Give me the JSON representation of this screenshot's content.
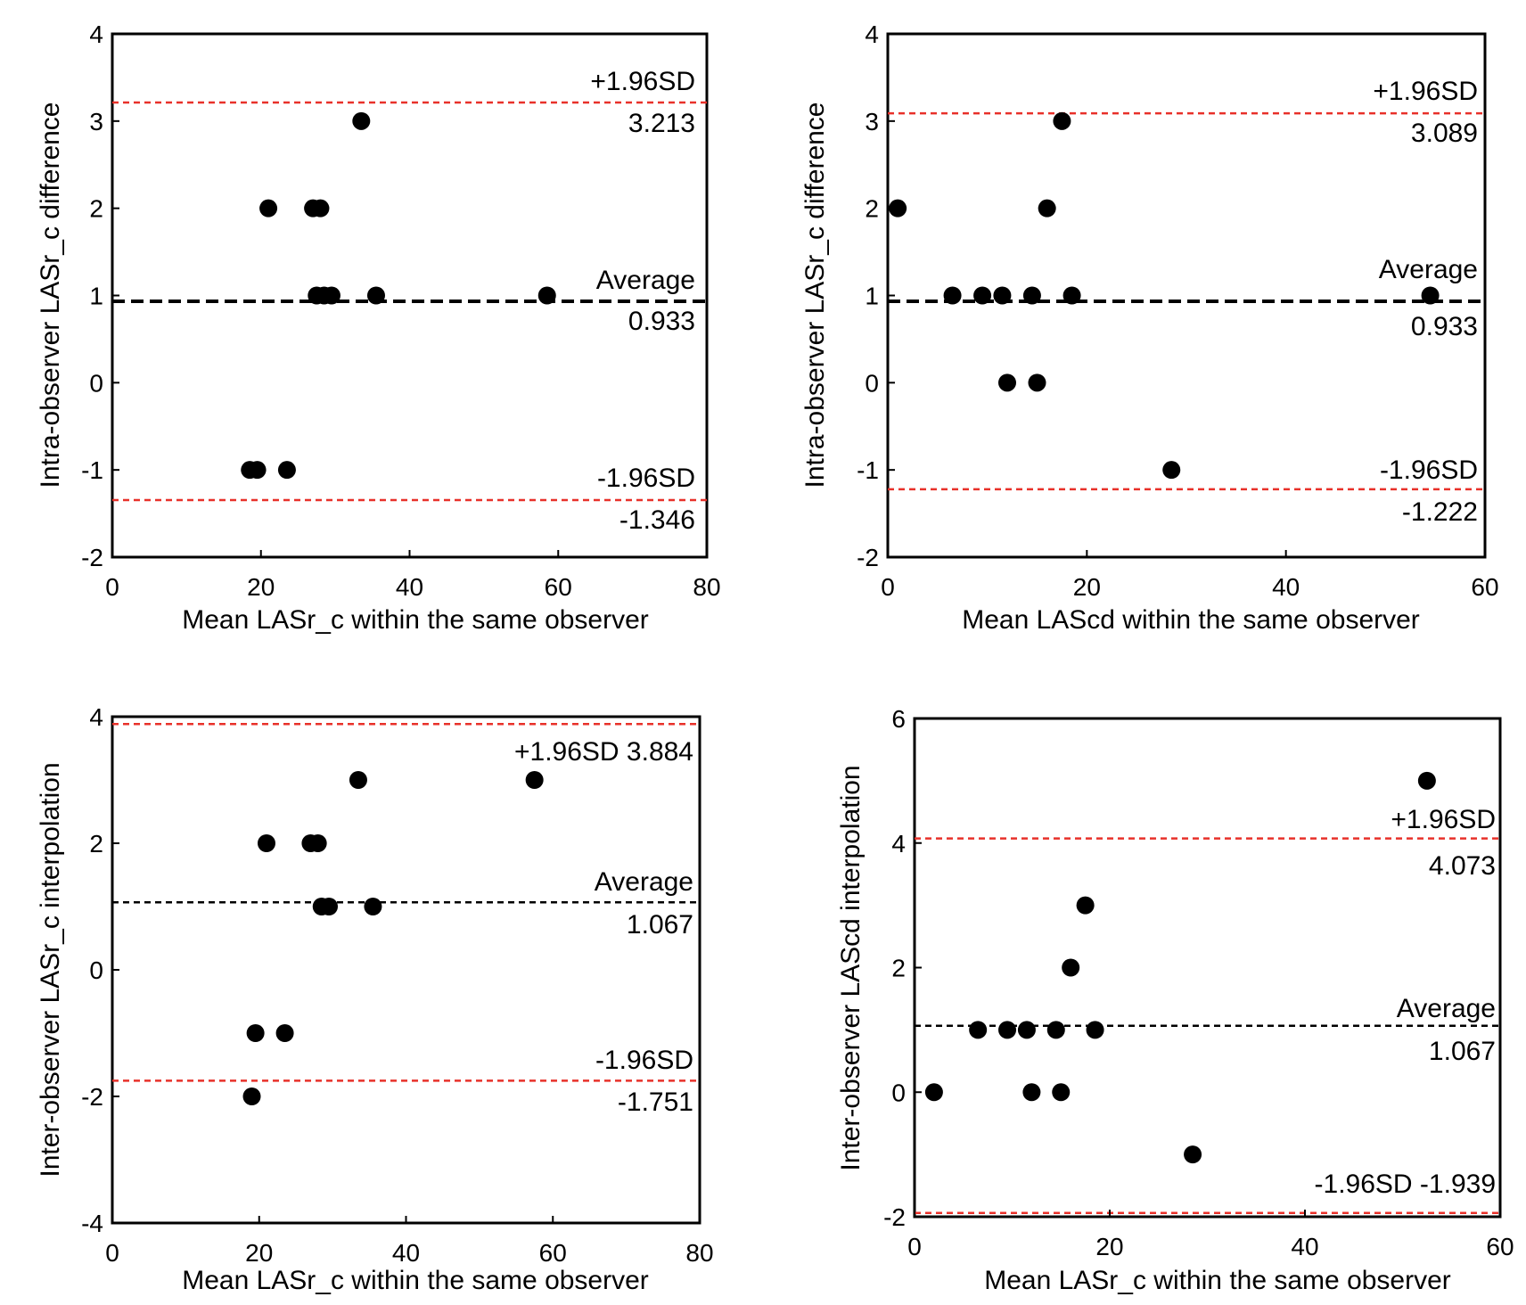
{
  "chart_data": [
    {
      "type": "scatter",
      "xlabel": "Mean LASr_c within the same observer",
      "ylabel": "Intra-observer LASr_c difference",
      "xlim": [
        0,
        80
      ],
      "ylim": [
        -2,
        4
      ],
      "xticks": [
        "0",
        "20",
        "40",
        "60",
        "80"
      ],
      "yticks": [
        "-2",
        "-1",
        "0",
        "1",
        "2",
        "3",
        "4"
      ],
      "grid": false,
      "points": [
        {
          "x": 18.5,
          "y": -1
        },
        {
          "x": 19.5,
          "y": -1
        },
        {
          "x": 23.5,
          "y": -1
        },
        {
          "x": 21,
          "y": 2
        },
        {
          "x": 27,
          "y": 2
        },
        {
          "x": 28,
          "y": 2
        },
        {
          "x": 27.5,
          "y": 1
        },
        {
          "x": 28.5,
          "y": 1
        },
        {
          "x": 29.5,
          "y": 1
        },
        {
          "x": 35.5,
          "y": 1
        },
        {
          "x": 58.5,
          "y": 1
        },
        {
          "x": 33.5,
          "y": 3
        }
      ],
      "reference_lines": [
        {
          "name": "+1.96SD",
          "value": 3.213,
          "value_label": "3.213",
          "color": "#e8312a",
          "style": "dotted"
        },
        {
          "name": "Average",
          "value": 0.933,
          "value_label": "0.933",
          "color": "#000000",
          "style": "dashed-bold"
        },
        {
          "name": "-1.96SD",
          "value": -1.346,
          "value_label": "-1.346",
          "color": "#e8312a",
          "style": "dotted"
        }
      ]
    },
    {
      "type": "scatter",
      "xlabel": "Mean LAScd within the same observer",
      "ylabel": "Intra-observer LASr_c difference",
      "xlim": [
        0,
        60
      ],
      "ylim": [
        -2,
        4
      ],
      "xticks": [
        "0",
        "20",
        "40",
        "60"
      ],
      "yticks": [
        "-2",
        "-1",
        "0",
        "1",
        "2",
        "3",
        "4"
      ],
      "grid": false,
      "points": [
        {
          "x": 1,
          "y": 2
        },
        {
          "x": 6.5,
          "y": 1
        },
        {
          "x": 9.5,
          "y": 1
        },
        {
          "x": 11.5,
          "y": 1
        },
        {
          "x": 14.5,
          "y": 1
        },
        {
          "x": 18.5,
          "y": 1
        },
        {
          "x": 12,
          "y": 0
        },
        {
          "x": 15,
          "y": 0
        },
        {
          "x": 16,
          "y": 2
        },
        {
          "x": 17.5,
          "y": 3
        },
        {
          "x": 28.5,
          "y": -1
        },
        {
          "x": 54.5,
          "y": 1
        }
      ],
      "reference_lines": [
        {
          "name": "+1.96SD",
          "value": 3.089,
          "value_label": "3.089",
          "color": "#e8312a",
          "style": "dotted"
        },
        {
          "name": "Average",
          "value": 0.933,
          "value_label": "0.933",
          "color": "#000000",
          "style": "dashed-bold"
        },
        {
          "name": "-1.96SD",
          "value": -1.222,
          "value_label": "-1.222",
          "color": "#e8312a",
          "style": "dotted"
        }
      ]
    },
    {
      "type": "scatter",
      "xlabel": "Mean LASr_c within the same observer",
      "ylabel": "Inter-observer LASr_c interpolation",
      "xlim": [
        0,
        80
      ],
      "ylim": [
        -4,
        4
      ],
      "xticks": [
        "0",
        "20",
        "40",
        "60",
        "80"
      ],
      "yticks": [
        "-4",
        "-2",
        "0",
        "2",
        "4"
      ],
      "grid": false,
      "points": [
        {
          "x": 19,
          "y": -2
        },
        {
          "x": 19.5,
          "y": -1
        },
        {
          "x": 23.5,
          "y": -1
        },
        {
          "x": 21,
          "y": 2
        },
        {
          "x": 27,
          "y": 2
        },
        {
          "x": 28,
          "y": 2
        },
        {
          "x": 28.5,
          "y": 1
        },
        {
          "x": 29.5,
          "y": 1
        },
        {
          "x": 35.5,
          "y": 1
        },
        {
          "x": 33.5,
          "y": 3
        },
        {
          "x": 57.5,
          "y": 3
        }
      ],
      "reference_lines": [
        {
          "name": "+1.96SD 3.884",
          "value": 3.884,
          "value_label": "",
          "color": "#e8312a",
          "style": "dotted"
        },
        {
          "name": "Average",
          "value": 1.067,
          "value_label": "1.067",
          "color": "#000000",
          "style": "dotted"
        },
        {
          "name": "-1.96SD",
          "value": -1.751,
          "value_label": "-1.751",
          "color": "#e8312a",
          "style": "dotted"
        }
      ]
    },
    {
      "type": "scatter",
      "xlabel": "Mean LASr_c within the same observer",
      "ylabel": "Inter-observer LAScd interpolation",
      "xlim": [
        0,
        60
      ],
      "ylim": [
        -2,
        6
      ],
      "xticks": [
        "0",
        "20",
        "40",
        "60"
      ],
      "yticks": [
        "-2",
        "0",
        "2",
        "4",
        "6"
      ],
      "grid": false,
      "points": [
        {
          "x": 2,
          "y": 0
        },
        {
          "x": 6.5,
          "y": 1
        },
        {
          "x": 9.5,
          "y": 1
        },
        {
          "x": 11.5,
          "y": 1
        },
        {
          "x": 14.5,
          "y": 1
        },
        {
          "x": 18.5,
          "y": 1
        },
        {
          "x": 12,
          "y": 0
        },
        {
          "x": 15,
          "y": 0
        },
        {
          "x": 16,
          "y": 2
        },
        {
          "x": 17.5,
          "y": 3
        },
        {
          "x": 28.5,
          "y": -1
        },
        {
          "x": 52.5,
          "y": 5
        }
      ],
      "reference_lines": [
        {
          "name": "+1.96SD",
          "value": 4.073,
          "value_label": "4.073",
          "color": "#e8312a",
          "style": "dotted"
        },
        {
          "name": "Average",
          "value": 1.067,
          "value_label": "1.067",
          "color": "#000000",
          "style": "dotted"
        },
        {
          "name": "-1.96SD -1.939",
          "value": -1.939,
          "value_label": "",
          "color": "#e8312a",
          "style": "dotted"
        }
      ]
    }
  ]
}
